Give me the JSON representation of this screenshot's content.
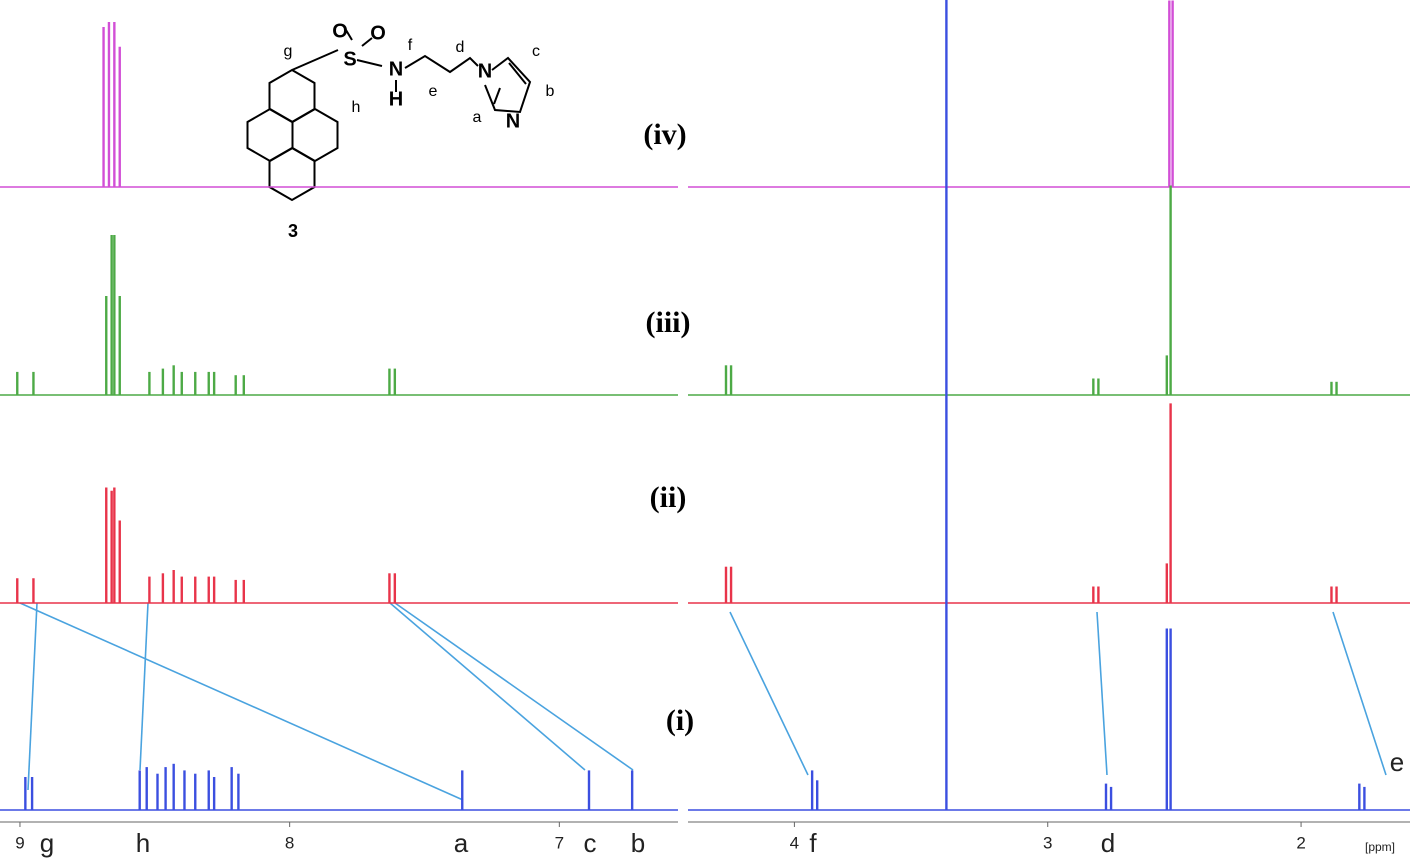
{
  "chart_data": {
    "type": "nmr-stack",
    "x_label": "[ppm]",
    "panels": [
      {
        "xlim": [
          9.074,
          6.56
        ],
        "xticks": [
          9,
          8,
          7
        ]
      },
      {
        "xlim": [
          4.42,
          1.57
        ],
        "xticks": [
          4,
          3,
          2
        ]
      }
    ],
    "series": [
      {
        "name": "(iv)",
        "color": "#d24fd6",
        "ppm": [
          8.69,
          8.67,
          8.65,
          8.63,
          2.52,
          2.507
        ],
        "values": [
          97,
          100,
          100,
          85,
          113,
          113
        ]
      },
      {
        "name": "(iii)",
        "color": "#4daa46",
        "ppm": [
          9.01,
          8.95,
          8.68,
          8.66,
          8.65,
          8.63,
          8.52,
          8.47,
          8.43,
          8.4,
          8.35,
          8.3,
          8.28,
          8.2,
          8.17,
          7.63,
          7.61,
          4.27,
          4.25,
          2.82,
          2.8,
          2.53,
          2.515,
          1.88,
          1.86
        ],
        "values": [
          14,
          14,
          60,
          97,
          97,
          60,
          14,
          16,
          18,
          14,
          14,
          14,
          14,
          12,
          12,
          16,
          16,
          18,
          18,
          10,
          10,
          24,
          127,
          8,
          8
        ]
      },
      {
        "name": "(ii)",
        "color": "#e8344a",
        "ppm": [
          9.01,
          8.95,
          8.68,
          8.66,
          8.65,
          8.63,
          8.52,
          8.47,
          8.43,
          8.4,
          8.35,
          8.3,
          8.28,
          8.2,
          8.17,
          7.63,
          7.61,
          4.27,
          4.25,
          2.82,
          2.8,
          2.53,
          2.515,
          1.88,
          1.86
        ],
        "values": [
          15,
          15,
          70,
          68,
          70,
          50,
          16,
          18,
          20,
          16,
          16,
          16,
          16,
          14,
          14,
          18,
          18,
          22,
          22,
          10,
          10,
          24,
          121,
          10,
          10
        ]
      },
      {
        "name": "(i)",
        "color": "#3b4fe0",
        "ppm": [
          8.98,
          8.955,
          8.556,
          8.53,
          8.49,
          8.46,
          8.43,
          8.39,
          8.35,
          8.3,
          8.28,
          8.215,
          8.19,
          7.36,
          6.89,
          6.73,
          3.93,
          3.91,
          3.4,
          2.77,
          2.75,
          2.53,
          2.515,
          1.77,
          1.75
        ],
        "values": [
          20,
          20,
          24,
          26,
          22,
          26,
          28,
          24,
          22,
          24,
          20,
          26,
          22,
          24,
          24,
          24,
          24,
          18,
          500,
          16,
          14,
          110,
          110,
          16,
          14
        ]
      }
    ],
    "peak_labels": [
      "g",
      "h",
      "a",
      "c",
      "b",
      "f",
      "d",
      "e"
    ]
  },
  "structure": {
    "compound": "3",
    "atoms": [
      "S",
      "O",
      "O",
      "N",
      "H",
      "N",
      "N"
    ],
    "positions": [
      "a",
      "b",
      "c",
      "d",
      "e",
      "f",
      "g",
      "h"
    ]
  }
}
